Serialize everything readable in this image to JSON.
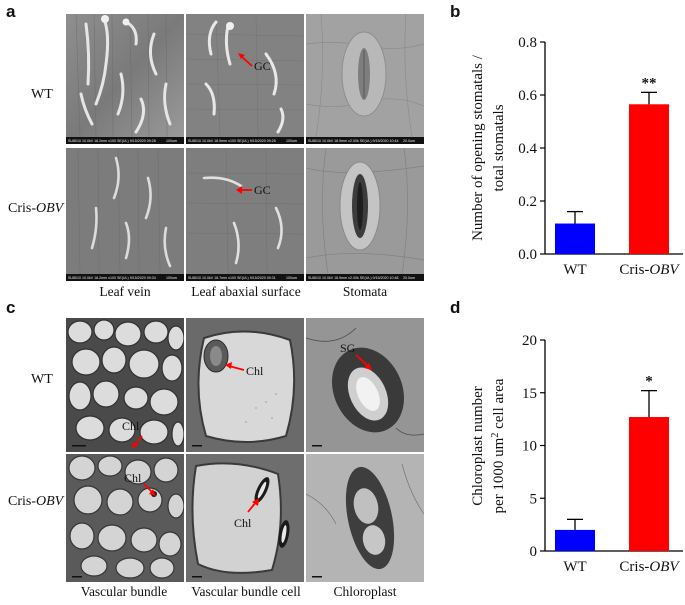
{
  "panels": {
    "a": {
      "letter": "a",
      "row_labels": [
        "WT",
        "Cris-",
        "OBV"
      ],
      "col_labels": [
        "Leaf vein",
        "Leaf abaxial surface",
        "Stomata"
      ],
      "annotations": {
        "gc_top": "GC",
        "gc_bottom": "GC"
      },
      "scalebars": [
        "SU8010 10.0kV 18.2mm x100 SE(UL) 9/15/2020 09:28",
        "SU8010 10.0kV 18.9mm x100 SE(UL) 9/15/2020 09:25",
        "SU8010 10.0kV 18.9mm x2.00k SE(UL) 9/15/2020 10:44",
        "SU8010 10.0kV 18.2mm x100 SE(UL) 9/15/2020 09:34",
        "SU8010 10.0kV 18.7mm x100 SE(UL) 9/15/2020 09:31",
        "SU8010 10.0kV 18.9mm x2.00k SE(UL) 9/15/2020 10:48"
      ],
      "scale_units": [
        "100um",
        "100um",
        "20.0um",
        "100um",
        "100um",
        "20.0um"
      ]
    },
    "b": {
      "letter": "b"
    },
    "c": {
      "letter": "c",
      "row_labels": [
        "WT",
        "Cris-",
        "OBV"
      ],
      "col_labels": [
        "Vascular bundle",
        "Vascular bundle cell",
        "Chloroplast"
      ],
      "annotations": {
        "chl_1": "Chl",
        "chl_2": "Chl",
        "sg": "SG",
        "chl_3": "Chl",
        "chl_4": "Chl"
      }
    },
    "d": {
      "letter": "d"
    }
  },
  "chart_data": [
    {
      "panel": "b",
      "type": "bar",
      "categories": [
        "WT",
        "Cris-OBV"
      ],
      "category_labels": [
        [
          "WT",
          ""
        ],
        [
          "Cris-",
          "OBV"
        ]
      ],
      "values": [
        0.115,
        0.565
      ],
      "errors": [
        0.045,
        0.045
      ],
      "colors": [
        "#0000ff",
        "#ff0000"
      ],
      "significance": [
        "",
        "**"
      ],
      "ylabel_lines": [
        "Number of opening stomatals /",
        "total stomatals"
      ],
      "ylim": [
        0,
        0.8
      ],
      "yticks": [
        0,
        0.2,
        0.4,
        0.6,
        0.8
      ],
      "ytick_labels": [
        "0.0",
        "0.2",
        "0.4",
        "0.6",
        "0.8"
      ]
    },
    {
      "panel": "d",
      "type": "bar",
      "categories": [
        "WT",
        "Cris-OBV"
      ],
      "category_labels": [
        [
          "WT",
          ""
        ],
        [
          "Cris-",
          "OBV"
        ]
      ],
      "values": [
        2.0,
        12.7
      ],
      "errors": [
        1.0,
        2.5
      ],
      "colors": [
        "#0000ff",
        "#ff0000"
      ],
      "significance": [
        "",
        "*"
      ],
      "ylabel_lines": [
        "Chloroplast number",
        "per 1000 um",
        "2",
        " cell area"
      ],
      "ylim": [
        0,
        20
      ],
      "yticks": [
        0,
        5,
        10,
        15,
        20
      ],
      "ytick_labels": [
        "0",
        "5",
        "10",
        "15",
        "20"
      ]
    }
  ]
}
